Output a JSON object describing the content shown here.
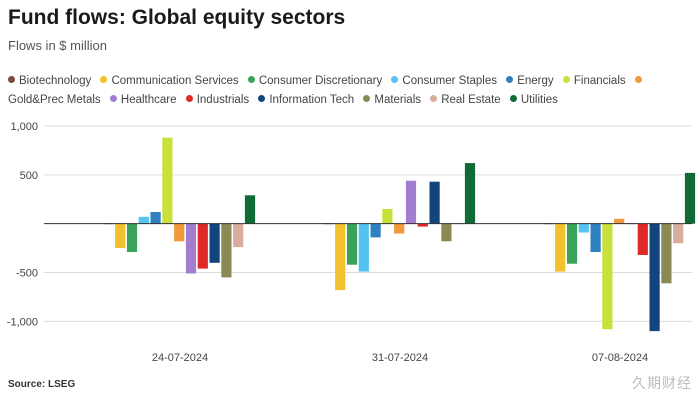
{
  "title": "Fund flows: Global equity sectors",
  "subtitle": "Flows in $ million",
  "source": "Source: LSEG",
  "watermark": "久期财经",
  "chart_data": {
    "type": "bar",
    "categories": [
      "24-07-2024",
      "31-07-2024",
      "07-08-2024"
    ],
    "ylim": [
      -1150,
      1000
    ],
    "yticks": [
      1000,
      500,
      -500,
      -1000
    ],
    "ytick_labels": [
      "1,000",
      "500",
      "-500",
      "-1,000"
    ],
    "grid": true,
    "legend_position": "top",
    "series": [
      {
        "name": "Biotechnology",
        "color": "#7a4a3a",
        "values": [
          0,
          5,
          0
        ]
      },
      {
        "name": "Communication Services",
        "color": "#f2c12e",
        "values": [
          -250,
          -680,
          -490
        ]
      },
      {
        "name": "Consumer Discretionary",
        "color": "#3aa35a",
        "values": [
          -290,
          -420,
          -410
        ]
      },
      {
        "name": "Consumer Staples",
        "color": "#54c3f0",
        "values": [
          70,
          -490,
          -90
        ]
      },
      {
        "name": "Energy",
        "color": "#2f80c0",
        "values": [
          120,
          -140,
          -290
        ]
      },
      {
        "name": "Financials",
        "color": "#c9df3a",
        "values": [
          880,
          150,
          -1080
        ]
      },
      {
        "name": "Gold&Prec Metals",
        "color": "#f29a3a",
        "values": [
          -180,
          -100,
          50
        ]
      },
      {
        "name": "Healthcare",
        "color": "#a37ed0",
        "values": [
          -510,
          440,
          0
        ]
      },
      {
        "name": "Industrials",
        "color": "#e02a2a",
        "values": [
          -460,
          -30,
          -320
        ]
      },
      {
        "name": "Information Tech",
        "color": "#13447d",
        "values": [
          -400,
          430,
          -1100
        ]
      },
      {
        "name": "Materials",
        "color": "#8b8a55",
        "values": [
          -550,
          -180,
          -610
        ]
      },
      {
        "name": "Real Estate",
        "color": "#d8ad9e",
        "values": [
          -240,
          0,
          -200
        ]
      },
      {
        "name": "Utilities",
        "color": "#0e6b34",
        "values": [
          290,
          620,
          520
        ]
      }
    ]
  }
}
